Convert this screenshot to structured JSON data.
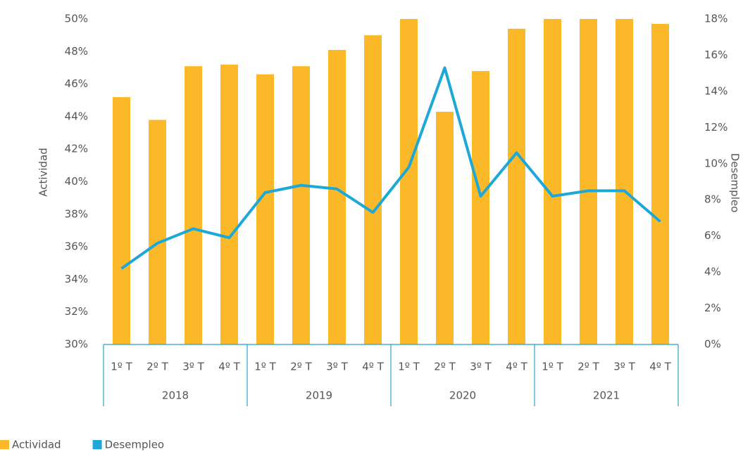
{
  "chart_data": {
    "type": "bar",
    "categories": [
      "1º T",
      "2º T",
      "3º T",
      "4º T",
      "1º T",
      "2º T",
      "3º T",
      "4º T",
      "1º T",
      "2º T",
      "3º T",
      "4º T",
      "1º T",
      "2º T",
      "3º T",
      "4º T"
    ],
    "groups": [
      "2018",
      "2019",
      "2020",
      "2021"
    ],
    "ylabel": "Actividad",
    "y2label": "Desempleo",
    "ylim": [
      30,
      50
    ],
    "yticks": [
      {
        "value": 30,
        "label": "30%"
      },
      {
        "value": 32,
        "label": "32%"
      },
      {
        "value": 34,
        "label": "34%"
      },
      {
        "value": 36,
        "label": "36%"
      },
      {
        "value": 38,
        "label": "38%"
      },
      {
        "value": 40,
        "label": "40%"
      },
      {
        "value": 42,
        "label": "42%"
      },
      {
        "value": 44,
        "label": "44%"
      },
      {
        "value": 46,
        "label": "46%"
      },
      {
        "value": 48,
        "label": "48%"
      },
      {
        "value": 50,
        "label": "50%"
      }
    ],
    "y2lim": [
      0,
      18
    ],
    "y2ticks": [
      {
        "value": 0,
        "label": "0%"
      },
      {
        "value": 2,
        "label": "2%"
      },
      {
        "value": 4,
        "label": "4%"
      },
      {
        "value": 6,
        "label": "6%"
      },
      {
        "value": 8,
        "label": "8%"
      },
      {
        "value": 10,
        "label": "10%"
      },
      {
        "value": 12,
        "label": "12%"
      },
      {
        "value": 14,
        "label": "14%"
      },
      {
        "value": 16,
        "label": "16%"
      },
      {
        "value": 18,
        "label": "18%"
      }
    ],
    "legend": "bottom-left",
    "series": [
      {
        "name": "Actividad",
        "type": "bar",
        "axis": "y",
        "color": "#fbb829",
        "values": [
          45.2,
          43.8,
          47.1,
          47.2,
          46.6,
          47.1,
          48.1,
          49.0,
          50.0,
          44.3,
          46.8,
          49.4,
          50.0,
          50.0,
          50.0,
          49.7
        ]
      },
      {
        "name": "Desempleo",
        "type": "line",
        "axis": "y2",
        "color": "#1ea8d8",
        "values": [
          4.2,
          5.6,
          6.4,
          5.9,
          8.4,
          8.8,
          8.6,
          7.3,
          9.8,
          15.3,
          8.2,
          10.6,
          8.2,
          8.5,
          8.5,
          6.8
        ]
      }
    ]
  }
}
